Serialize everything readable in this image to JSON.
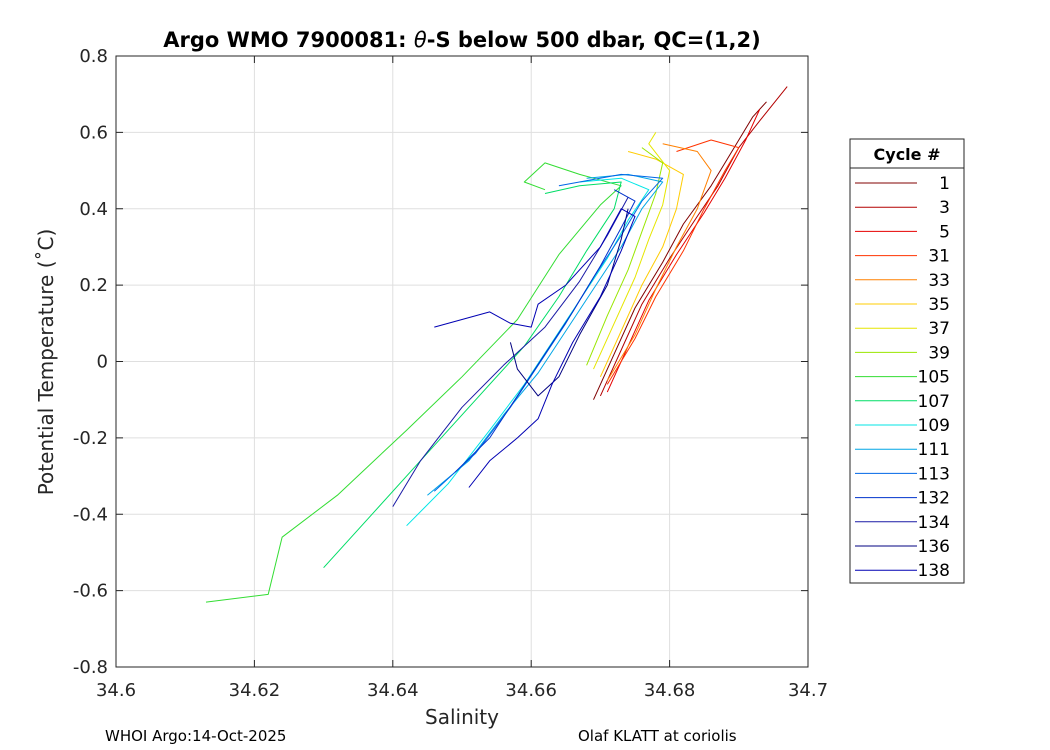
{
  "chart_data": {
    "type": "line",
    "title_prefix": "Argo WMO 7900081: ",
    "title_theta": "θ",
    "title_suffix": "-S below 500 dbar,  QC=(1,2)",
    "xlabel": "Salinity",
    "ylabel": "Potential Temperature (˚C)",
    "xlim": [
      34.6,
      34.7
    ],
    "ylim": [
      -0.8,
      0.8
    ],
    "xticks": [
      34.6,
      34.62,
      34.64,
      34.66,
      34.68,
      34.7
    ],
    "xtick_labels": [
      "34.6",
      "34.62",
      "34.64",
      "34.66",
      "34.68",
      "34.7"
    ],
    "yticks": [
      -0.8,
      -0.6,
      -0.4,
      -0.2,
      0,
      0.2,
      0.4,
      0.6,
      0.8
    ],
    "ytick_labels": [
      "-0.8",
      "-0.6",
      "-0.4",
      "-0.2",
      "0",
      "0.2",
      "0.4",
      "0.6",
      "0.8"
    ],
    "grid": true,
    "legend_title": "Cycle #",
    "legend_position": "outside-right",
    "series": [
      {
        "name": "1",
        "color": "#800000",
        "points": [
          [
            34.669,
            -0.1
          ],
          [
            34.672,
            0.02
          ],
          [
            34.675,
            0.14
          ],
          [
            34.679,
            0.26
          ],
          [
            34.682,
            0.36
          ],
          [
            34.686,
            0.46
          ],
          [
            34.688,
            0.52
          ],
          [
            34.69,
            0.58
          ],
          [
            34.692,
            0.64
          ],
          [
            34.694,
            0.68
          ]
        ]
      },
      {
        "name": "3",
        "color": "#b30000",
        "points": [
          [
            34.67,
            -0.09
          ],
          [
            34.673,
            0.03
          ],
          [
            34.676,
            0.15
          ],
          [
            34.68,
            0.27
          ],
          [
            34.684,
            0.38
          ],
          [
            34.687,
            0.46
          ],
          [
            34.69,
            0.56
          ],
          [
            34.693,
            0.63
          ],
          [
            34.697,
            0.72
          ]
        ]
      },
      {
        "name": "5",
        "color": "#e60000",
        "points": [
          [
            34.671,
            -0.08
          ],
          [
            34.674,
            0.04
          ],
          [
            34.677,
            0.16
          ],
          [
            34.681,
            0.28
          ],
          [
            34.685,
            0.39
          ],
          [
            34.688,
            0.48
          ],
          [
            34.691,
            0.58
          ],
          [
            34.693,
            0.66
          ]
        ]
      },
      {
        "name": "31",
        "color": "#ff3300",
        "points": [
          [
            34.671,
            -0.06
          ],
          [
            34.675,
            0.06
          ],
          [
            34.678,
            0.17
          ],
          [
            34.682,
            0.29
          ],
          [
            34.685,
            0.4
          ],
          [
            34.688,
            0.5
          ],
          [
            34.69,
            0.56
          ],
          [
            34.686,
            0.58
          ],
          [
            34.681,
            0.55
          ]
        ]
      },
      {
        "name": "33",
        "color": "#ff8000",
        "points": [
          [
            34.671,
            -0.05
          ],
          [
            34.675,
            0.07
          ],
          [
            34.678,
            0.19
          ],
          [
            34.681,
            0.3
          ],
          [
            34.684,
            0.4
          ],
          [
            34.686,
            0.5
          ],
          [
            34.684,
            0.55
          ],
          [
            34.679,
            0.57
          ]
        ]
      },
      {
        "name": "35",
        "color": "#ffcc00",
        "points": [
          [
            34.67,
            -0.04
          ],
          [
            34.673,
            0.08
          ],
          [
            34.676,
            0.2
          ],
          [
            34.679,
            0.3
          ],
          [
            34.681,
            0.4
          ],
          [
            34.682,
            0.49
          ],
          [
            34.678,
            0.53
          ],
          [
            34.674,
            0.55
          ]
        ]
      },
      {
        "name": "37",
        "color": "#e6e600",
        "points": [
          [
            34.669,
            -0.02
          ],
          [
            34.672,
            0.1
          ],
          [
            34.675,
            0.22
          ],
          [
            34.677,
            0.32
          ],
          [
            34.679,
            0.41
          ],
          [
            34.68,
            0.5
          ],
          [
            34.677,
            0.57
          ],
          [
            34.678,
            0.6
          ]
        ]
      },
      {
        "name": "39",
        "color": "#99e600",
        "points": [
          [
            34.668,
            -0.01
          ],
          [
            34.671,
            0.12
          ],
          [
            34.674,
            0.24
          ],
          [
            34.676,
            0.34
          ],
          [
            34.678,
            0.44
          ],
          [
            34.679,
            0.52
          ],
          [
            34.676,
            0.56
          ]
        ]
      },
      {
        "name": "105",
        "color": "#33dd33",
        "points": [
          [
            34.613,
            -0.63
          ],
          [
            34.622,
            -0.61
          ],
          [
            34.624,
            -0.46
          ],
          [
            34.632,
            -0.35
          ],
          [
            34.642,
            -0.18
          ],
          [
            34.65,
            -0.04
          ],
          [
            34.658,
            0.11
          ],
          [
            34.664,
            0.28
          ],
          [
            34.67,
            0.41
          ],
          [
            34.673,
            0.46
          ],
          [
            34.667,
            0.49
          ],
          [
            34.662,
            0.52
          ],
          [
            34.659,
            0.47
          ],
          [
            34.662,
            0.45
          ]
        ]
      },
      {
        "name": "107",
        "color": "#00dd66",
        "points": [
          [
            34.63,
            -0.54
          ],
          [
            34.637,
            -0.4
          ],
          [
            34.645,
            -0.24
          ],
          [
            34.652,
            -0.1
          ],
          [
            34.659,
            0.04
          ],
          [
            34.664,
            0.17
          ],
          [
            34.668,
            0.29
          ],
          [
            34.672,
            0.4
          ],
          [
            34.673,
            0.47
          ],
          [
            34.667,
            0.46
          ],
          [
            34.662,
            0.44
          ]
        ]
      },
      {
        "name": "109",
        "color": "#00e6e6",
        "points": [
          [
            34.642,
            -0.43
          ],
          [
            34.648,
            -0.32
          ],
          [
            34.654,
            -0.18
          ],
          [
            34.659,
            -0.06
          ],
          [
            34.663,
            0.05
          ],
          [
            34.667,
            0.16
          ],
          [
            34.671,
            0.27
          ],
          [
            34.674,
            0.37
          ],
          [
            34.677,
            0.45
          ],
          [
            34.673,
            0.48
          ],
          [
            34.667,
            0.47
          ]
        ]
      },
      {
        "name": "111",
        "color": "#00a6e6",
        "points": [
          [
            34.645,
            -0.35
          ],
          [
            34.651,
            -0.26
          ],
          [
            34.656,
            -0.14
          ],
          [
            34.661,
            -0.03
          ],
          [
            34.665,
            0.08
          ],
          [
            34.669,
            0.19
          ],
          [
            34.673,
            0.3
          ],
          [
            34.676,
            0.4
          ],
          [
            34.679,
            0.47
          ],
          [
            34.674,
            0.49
          ],
          [
            34.668,
            0.48
          ]
        ]
      },
      {
        "name": "113",
        "color": "#0066e6",
        "points": [
          [
            34.646,
            -0.34
          ],
          [
            34.652,
            -0.24
          ],
          [
            34.657,
            -0.12
          ],
          [
            34.661,
            -0.01
          ],
          [
            34.665,
            0.1
          ],
          [
            34.669,
            0.22
          ],
          [
            34.673,
            0.33
          ],
          [
            34.676,
            0.42
          ],
          [
            34.679,
            0.48
          ],
          [
            34.673,
            0.49
          ],
          [
            34.664,
            0.46
          ]
        ]
      },
      {
        "name": "132",
        "color": "#0033cc",
        "points": [
          [
            34.649,
            -0.29
          ],
          [
            34.654,
            -0.2
          ],
          [
            34.658,
            -0.09
          ],
          [
            34.662,
            0.02
          ],
          [
            34.666,
            0.13
          ],
          [
            34.67,
            0.25
          ],
          [
            34.673,
            0.35
          ],
          [
            34.675,
            0.42
          ],
          [
            34.672,
            0.45
          ]
        ]
      },
      {
        "name": "134",
        "color": "#1a1aa6",
        "points": [
          [
            34.64,
            -0.38
          ],
          [
            34.644,
            -0.26
          ],
          [
            34.65,
            -0.12
          ],
          [
            34.656,
            -0.01
          ],
          [
            34.662,
            0.09
          ],
          [
            34.667,
            0.21
          ],
          [
            34.671,
            0.33
          ],
          [
            34.674,
            0.43
          ]
        ]
      },
      {
        "name": "136",
        "color": "#000080",
        "points": [
          [
            34.657,
            0.05
          ],
          [
            34.658,
            -0.02
          ],
          [
            34.661,
            -0.09
          ],
          [
            34.664,
            -0.04
          ],
          [
            34.667,
            0.07
          ],
          [
            34.671,
            0.2
          ],
          [
            34.673,
            0.32
          ],
          [
            34.674,
            0.4
          ]
        ]
      },
      {
        "name": "138",
        "color": "#0000b3",
        "points": [
          [
            34.651,
            -0.33
          ],
          [
            34.654,
            -0.26
          ],
          [
            34.658,
            -0.2
          ],
          [
            34.661,
            -0.15
          ],
          [
            34.663,
            -0.06
          ],
          [
            34.666,
            0.05
          ],
          [
            34.67,
            0.17
          ],
          [
            34.673,
            0.29
          ],
          [
            34.675,
            0.38
          ],
          [
            34.673,
            0.4
          ],
          [
            34.67,
            0.3
          ],
          [
            34.665,
            0.2
          ],
          [
            34.661,
            0.15
          ],
          [
            34.66,
            0.09
          ],
          [
            34.657,
            0.1
          ],
          [
            34.654,
            0.13
          ],
          [
            34.65,
            0.11
          ],
          [
            34.646,
            0.09
          ]
        ]
      }
    ]
  },
  "footer": {
    "left": "WHOI Argo:14-Oct-2025",
    "right": "Olaf KLATT at coriolis"
  }
}
